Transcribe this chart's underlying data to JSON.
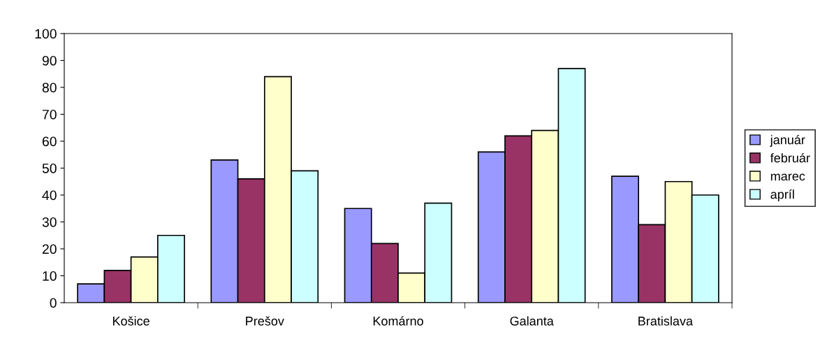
{
  "chart_data": {
    "type": "bar",
    "categories": [
      "Košice",
      "Prešov",
      "Komárno",
      "Galanta",
      "Bratislava"
    ],
    "series": [
      {
        "name": "január",
        "color": "#9999ff",
        "values": [
          7,
          53,
          35,
          56,
          47
        ]
      },
      {
        "name": "február",
        "color": "#993366",
        "values": [
          12,
          46,
          22,
          62,
          29
        ]
      },
      {
        "name": "marec",
        "color": "#ffffcc",
        "values": [
          17,
          84,
          11,
          64,
          45
        ]
      },
      {
        "name": "apríl",
        "color": "#ccffff",
        "values": [
          25,
          49,
          37,
          87,
          40
        ]
      }
    ],
    "ylim": [
      0,
      100
    ],
    "yticks": [
      0,
      10,
      20,
      30,
      40,
      50,
      60,
      70,
      80,
      90,
      100
    ],
    "grid": false,
    "legend": "right"
  }
}
